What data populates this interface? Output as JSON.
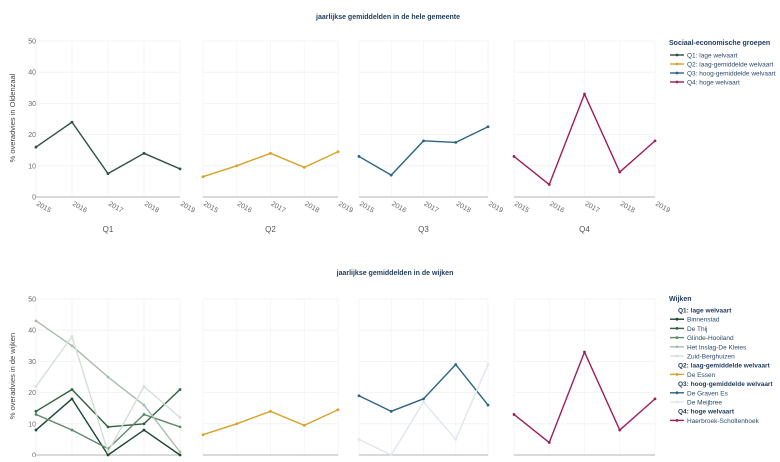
{
  "top": {
    "title": "jaarlijkse gemiddelden in de hele gemeente",
    "ylabel": "% overadvies in Oldenzaal",
    "ylim": [
      0,
      50
    ],
    "yticks": [
      0,
      10,
      20,
      30,
      40,
      50
    ],
    "years": [
      "2015",
      "2016",
      "2017",
      "2018",
      "2019"
    ],
    "legend_title": "Sociaal-economische groepen",
    "panels": [
      {
        "label": "Q1",
        "series": [
          {
            "name": "Q1: lage welvaart",
            "color": "#2f4f3f",
            "values": [
              16,
              24,
              7.5,
              14,
              9
            ]
          }
        ]
      },
      {
        "label": "Q2",
        "series": [
          {
            "name": "Q2: laag-gemiddelde welvaart",
            "color": "#d9a126",
            "values": [
              6.5,
              10,
              14,
              9.5,
              14.5
            ]
          }
        ]
      },
      {
        "label": "Q3",
        "series": [
          {
            "name": "Q3: hoog-gemiddelde welvaart",
            "color": "#2a6483",
            "values": [
              13,
              7,
              18,
              17.5,
              22.5
            ]
          }
        ]
      },
      {
        "label": "Q4",
        "series": [
          {
            "name": "Q4: hoge welvaart",
            "color": "#9e1e5a",
            "values": [
              13,
              4,
              33,
              8,
              18
            ]
          }
        ]
      }
    ]
  },
  "bottom": {
    "title": "jaarlijkse gemiddelden in de wijken",
    "ylabel": "% overadvies in de wijken",
    "ylim": [
      0,
      50
    ],
    "yticks": [
      0,
      10,
      20,
      30,
      40,
      50
    ],
    "legend_title": "Wijken",
    "legend": [
      {
        "type": "header",
        "label": "Q1: lage welvaart"
      },
      {
        "type": "item",
        "label": "Binnenstad",
        "color": "#1e4632"
      },
      {
        "type": "item",
        "label": "De Thij",
        "color": "#2f6040"
      },
      {
        "type": "item",
        "label": "Glinde-Hooiland",
        "color": "#5f8a6c"
      },
      {
        "type": "item",
        "label": "Het Inslag-De Kleies",
        "color": "#a7bdaa"
      },
      {
        "type": "item",
        "label": "Zuid-Berghuizen",
        "color": "#d4e0d6"
      },
      {
        "type": "header",
        "label": "Q2: laag-gemiddelde welvaart"
      },
      {
        "type": "item",
        "label": "De Essen",
        "color": "#d9a126"
      },
      {
        "type": "header",
        "label": "Q3: hoog-gemiddelde welvaart"
      },
      {
        "type": "item",
        "label": "De Graven Es",
        "color": "#2a6483"
      },
      {
        "type": "item",
        "label": "De Meijbree",
        "color": "#dfe6ee"
      },
      {
        "type": "header",
        "label": "Q4: hoge welvaart"
      },
      {
        "type": "item",
        "label": "Haerbroek-Scholtenhoek",
        "color": "#9e1e5a"
      }
    ],
    "panels": [
      {
        "series": [
          {
            "name": "Binnenstad",
            "color": "#1e4632",
            "values": [
              8,
              18,
              0,
              8,
              0
            ]
          },
          {
            "name": "De Thij",
            "color": "#2f6040",
            "values": [
              14,
              21,
              9,
              10,
              21
            ]
          },
          {
            "name": "Glinde-Hooiland",
            "color": "#5f8a6c",
            "values": [
              13,
              8,
              2,
              13,
              9
            ]
          },
          {
            "name": "Het Inslag-De Kleies",
            "color": "#a7bdaa",
            "values": [
              43,
              35,
              25,
              16,
              1
            ]
          },
          {
            "name": "Zuid-Berghuizen",
            "color": "#d4e0d6",
            "values": [
              22,
              38,
              1,
              22,
              12
            ]
          }
        ]
      },
      {
        "series": [
          {
            "name": "De Essen",
            "color": "#d9a126",
            "values": [
              6.5,
              10,
              14,
              9.5,
              14.5
            ]
          }
        ]
      },
      {
        "series": [
          {
            "name": "De Graven Es",
            "color": "#2a6483",
            "values": [
              19,
              14,
              18,
              29,
              16
            ]
          },
          {
            "name": "De Meijbree",
            "color": "#dfe6ee",
            "values": [
              5,
              0,
              17,
              5,
              29
            ]
          }
        ]
      },
      {
        "series": [
          {
            "name": "Haerbroek-Scholtenhoek",
            "color": "#9e1e5a",
            "values": [
              13,
              4,
              33,
              8,
              18
            ]
          }
        ]
      }
    ]
  },
  "chart_data": [
    {
      "type": "line",
      "title": "jaarlijkse gemiddelden in de hele gemeente",
      "ylabel": "% overadvies in Oldenzaal",
      "x": [
        "2015",
        "2016",
        "2017",
        "2018",
        "2019"
      ],
      "ylim": [
        0,
        50
      ],
      "series": [
        {
          "name": "Q1: lage welvaart",
          "values": [
            16,
            24,
            7.5,
            14,
            9
          ]
        },
        {
          "name": "Q2: laag-gemiddelde welvaart",
          "values": [
            6.5,
            10,
            14,
            9.5,
            14.5
          ]
        },
        {
          "name": "Q3: hoog-gemiddelde welvaart",
          "values": [
            13,
            7,
            18,
            17.5,
            22.5
          ]
        },
        {
          "name": "Q4: hoge welvaart",
          "values": [
            13,
            4,
            33,
            8,
            18
          ]
        }
      ]
    },
    {
      "type": "line",
      "title": "jaarlijkse gemiddelden in de wijken",
      "ylabel": "% overadvies in de wijken",
      "x": [
        "2015",
        "2016",
        "2017",
        "2018",
        "2019"
      ],
      "ylim": [
        0,
        50
      ],
      "series": [
        {
          "name": "Binnenstad",
          "values": [
            8,
            18,
            0,
            8,
            0
          ]
        },
        {
          "name": "De Thij",
          "values": [
            14,
            21,
            9,
            10,
            21
          ]
        },
        {
          "name": "Glinde-Hooiland",
          "values": [
            13,
            8,
            2,
            13,
            9
          ]
        },
        {
          "name": "Het Inslag-De Kleies",
          "values": [
            43,
            35,
            25,
            16,
            1
          ]
        },
        {
          "name": "Zuid-Berghuizen",
          "values": [
            22,
            38,
            1,
            22,
            12
          ]
        },
        {
          "name": "De Essen",
          "values": [
            6.5,
            10,
            14,
            9.5,
            14.5
          ]
        },
        {
          "name": "De Graven Es",
          "values": [
            19,
            14,
            18,
            29,
            16
          ]
        },
        {
          "name": "De Meijbree",
          "values": [
            5,
            0,
            17,
            5,
            29
          ]
        },
        {
          "name": "Haerbroek-Scholtenhoek",
          "values": [
            13,
            4,
            33,
            8,
            18
          ]
        }
      ]
    }
  ]
}
